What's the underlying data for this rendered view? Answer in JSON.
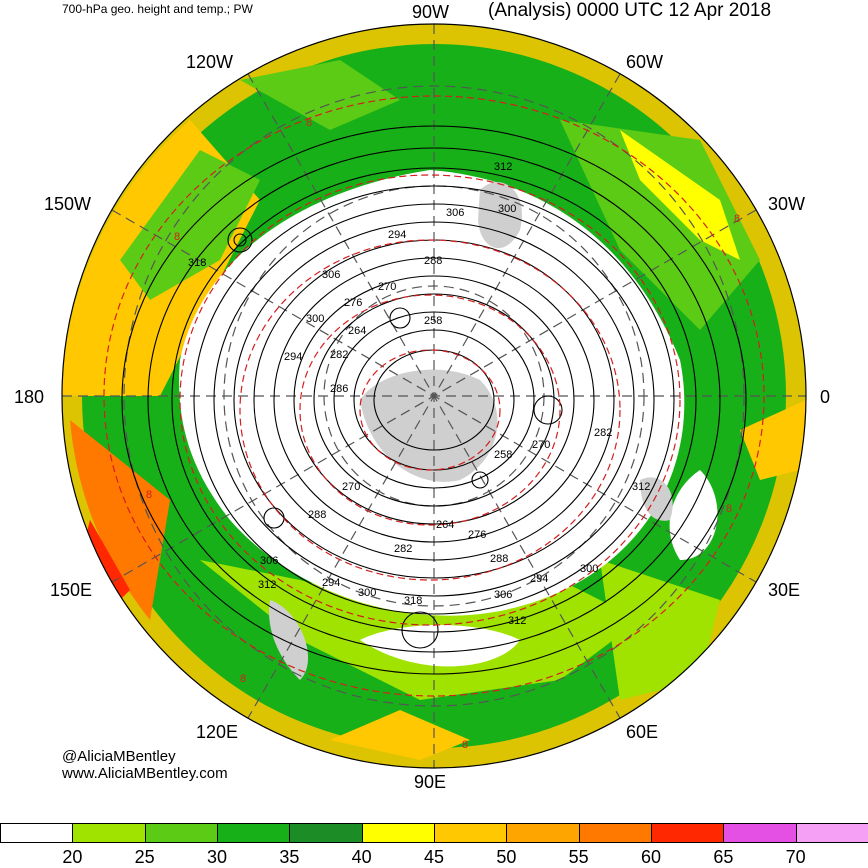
{
  "header": {
    "left_title": "700-hPa geo. height and temp.; PW",
    "right_title": "(Analysis) 0000 UTC 12 Apr 2018"
  },
  "longitude_labels": {
    "lon_90w": "90W",
    "lon_120w": "120W",
    "lon_60w": "60W",
    "lon_150w": "150W",
    "lon_30w": "30W",
    "lon_180": "180",
    "lon_0": "0",
    "lon_150e": "150E",
    "lon_30e": "30E",
    "lon_120e": "120E",
    "lon_60e": "60E",
    "lon_90e": "90E"
  },
  "contour_labels": {
    "hgt": [
      "312",
      "306",
      "300",
      "294",
      "288",
      "318",
      "306",
      "300",
      "294",
      "270",
      "276",
      "264",
      "258",
      "282",
      "286",
      "270",
      "288",
      "306",
      "312",
      "258",
      "270",
      "282",
      "312",
      "264",
      "276",
      "282",
      "288",
      "294",
      "300",
      "294",
      "300",
      "306",
      "312",
      "318"
    ],
    "temp": [
      "8",
      "8",
      "8",
      "8",
      "8",
      "8",
      "8"
    ]
  },
  "credits": {
    "twitter": "@AliciaMBentley",
    "website": "www.AliciaMBentley.com"
  },
  "colorbar": {
    "colors": [
      "#ffffff",
      "#a0e300",
      "#5ccb15",
      "#18b018",
      "#1b8c26",
      "#ffff00",
      "#ffc800",
      "#ffa500",
      "#ff7800",
      "#ff2800",
      "#e350e3",
      "#f5a0f5"
    ],
    "ticks": [
      "20",
      "25",
      "30",
      "35",
      "40",
      "45",
      "50",
      "55",
      "60",
      "65",
      "70"
    ]
  }
}
